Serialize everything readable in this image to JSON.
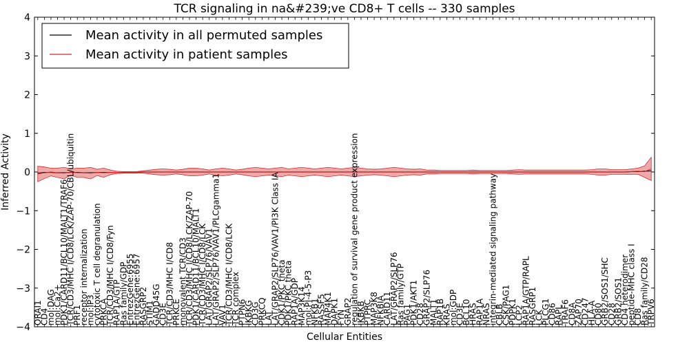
{
  "chart_data": {
    "type": "line",
    "title": "TCR signaling in na&#239;ve CD8+ T cells -- 330 samples",
    "xlabel": "Cellular Entities",
    "ylabel": "Inferred Activity",
    "ylim": [
      -4,
      4
    ],
    "yticks": [
      "4",
      "3",
      "2",
      "1",
      "0",
      "−1",
      "−2",
      "−3",
      "−4"
    ],
    "legend": {
      "position": "upper-left",
      "entries": [
        {
          "label": "Mean activity in all permuted samples",
          "color": "#000000"
        },
        {
          "label": "Mean activity in patient samples",
          "color": "#d62728"
        }
      ]
    },
    "categories": [
      "ORAI1",
      "CD4",
      "mol:DAG",
      "mol:Ca2+",
      "PDK1/CARD11/BCL10/MALT1/TRAF6",
      "TCR/CD3/MHC I/CD8/LCK/ZAP-70/CBL/ubiquitin",
      "PRF1",
      "receptor internalization",
      "mol:IP3",
      "cytotoxic T cell degranulation",
      "PRKCA",
      "TCR/CD3/MHC I/CD8/Fyn",
      "RAP1A/GTP",
      "Ras family/GDP",
      "EntrezGene:6955",
      "EntrezGene:6957",
      "RASGRP2",
      "STIM1",
      "GADD45G",
      "CD3E",
      "TCR/CD3/MHC I/CD8",
      "PRKCE",
      "monovalent TCR/CD3",
      "TCR/CD3/MHC I/CD8/LCK/ZAP-70",
      "PDK1/CARD11/BCL10/MALT1",
      "TCR/CD3/MHC I/CD8/LCK",
      "LAT/GRAP2/SLP76/VAV1",
      "LAT/GRAP2/SLP76/VAV1/PLCgamma1",
      "VAV1",
      "TCR/CD3/MHC I/CD8/LCK",
      "TCR complex",
      "PTPN6",
      "IKBKG",
      "CD3G",
      "PRKCQ",
      "LAT",
      "LAT/GRAP2/SLP76/VAV1/PI3K Class IA",
      "CDK1/PKC theta",
      "PDK1/PKC theta",
      "RAP1A/GDP",
      "MAP3K14",
      "mol:PI-4-5-P3",
      "NFKB1",
      "RASSF5",
      "MAP4K1",
      "DAPK1",
      "FYN",
      "GRAP2",
      "regulation of survival gene product expression",
      "IKBKB",
      "PTPRC",
      "MAP3K8",
      "NFKBIA",
      "CARD11",
      "LAT/GRAP2/SLP76",
      "Ras family/GTP",
      "PAG1",
      "PDK1/AKT1",
      "CD28",
      "GRAP2/SLP76",
      "MALT1",
      "RAP1B",
      "KRAS",
      "mol:GDP",
      "CD3E",
      "BCL10",
      "HRAS",
      "RAP1A",
      "NRAS",
      "integrin-mediated signaling pathway",
      "CBLB",
      "CSK/PAG1",
      "PDPK1",
      "LCP2",
      "RAP1A/GTP/RAPL",
      "RASGRP1",
      "LCK",
      "PLCG1",
      "CD86",
      "RAPL",
      "TRAF6",
      "CD8A",
      "ZAP70",
      "CD247",
      "HLA-A",
      "CD80",
      "GRB2/SOS1/SHC",
      "CD28",
      "GRB2/SOS1",
      "CD4 heterodimer",
      "peptide-MHC class I",
      "CD8",
      "Ras family/CD28",
      "TRPV6"
    ],
    "series": [
      {
        "name": "Mean activity in all permuted samples",
        "color": "#000000",
        "values": [
          -0.03,
          -0.01,
          -0.01,
          -0.02,
          -0.02,
          -0.01,
          -0.01,
          -0.02,
          -0.02,
          -0.01,
          -0.01,
          -0.01,
          -0.01,
          -0.01,
          -0.01,
          -0.01,
          0,
          0,
          0,
          0,
          0,
          0,
          0,
          0,
          0,
          0,
          0,
          0,
          0,
          0,
          0,
          0,
          0,
          0,
          0,
          0,
          0,
          0,
          0,
          0,
          0,
          0,
          0,
          0,
          0,
          0,
          0,
          0,
          0,
          0,
          0,
          0,
          0,
          0,
          0,
          0,
          0,
          0,
          0,
          0,
          0,
          0,
          0,
          0,
          0,
          0,
          0,
          0,
          0,
          0,
          0,
          0,
          0,
          0,
          0,
          0,
          0,
          0,
          0,
          0,
          0,
          0,
          0,
          0,
          0,
          0,
          0,
          0,
          0,
          0,
          0.01,
          0.01,
          0.02,
          0.03
        ]
      },
      {
        "name": "Mean activity in patient samples",
        "color": "#d62728",
        "values": [
          -0.05,
          -0.02,
          0.0,
          -0.02,
          -0.03,
          0.0,
          -0.02,
          -0.02,
          -0.03,
          -0.01,
          -0.02,
          -0.01,
          -0.01,
          -0.01,
          -0.01,
          -0.01,
          0.0,
          0.0,
          0.0,
          0.0,
          0.0,
          0.0,
          0.0,
          0.0,
          0.0,
          0.0,
          0.0,
          0.0,
          0.0,
          0.0,
          0.0,
          0.0,
          0.0,
          0.0,
          0.0,
          0.0,
          0.0,
          0.0,
          0.0,
          0.0,
          0.0,
          0.0,
          0.0,
          0.0,
          0.0,
          0.0,
          0.0,
          0.0,
          0.0,
          0.0,
          0.0,
          0.0,
          0.0,
          0.0,
          0.0,
          0.0,
          0.0,
          0.0,
          0.0,
          0.0,
          0.0,
          0.0,
          0.0,
          0.0,
          0.0,
          0.0,
          0.0,
          0.0,
          0.0,
          0.0,
          0.0,
          0.0,
          0.0,
          0.0,
          0.0,
          0.0,
          0.0,
          0.0,
          0.0,
          0.0,
          0.0,
          0.0,
          0.0,
          0.0,
          0.0,
          0.0,
          0.0,
          0.0,
          0.0,
          0.0,
          0.01,
          0.02,
          0.01,
          0.08
        ]
      }
    ],
    "band": {
      "name": "patient sample spread",
      "color": "#d62728",
      "half_width": [
        0.2,
        0.15,
        0.1,
        0.12,
        0.15,
        0.08,
        0.12,
        0.12,
        0.15,
        0.08,
        0.12,
        0.06,
        0.03,
        0.02,
        0.02,
        0.02,
        0.03,
        0.05,
        0.07,
        0.08,
        0.07,
        0.05,
        0.07,
        0.1,
        0.1,
        0.08,
        0.05,
        0.08,
        0.1,
        0.08,
        0.05,
        0.07,
        0.1,
        0.12,
        0.1,
        0.08,
        0.1,
        0.12,
        0.08,
        0.1,
        0.12,
        0.1,
        0.08,
        0.1,
        0.12,
        0.1,
        0.08,
        0.1,
        0.12,
        0.1,
        0.08,
        0.07,
        0.08,
        0.1,
        0.12,
        0.1,
        0.08,
        0.07,
        0.08,
        0.05,
        0.05,
        0.04,
        0.04,
        0.04,
        0.04,
        0.04,
        0.05,
        0.04,
        0.04,
        0.04,
        0.04,
        0.04,
        0.05,
        0.06,
        0.05,
        0.05,
        0.05,
        0.05,
        0.05,
        0.05,
        0.05,
        0.05,
        0.05,
        0.05,
        0.06,
        0.08,
        0.08,
        0.06,
        0.06,
        0.06,
        0.07,
        0.08,
        0.15,
        0.3
      ]
    }
  }
}
